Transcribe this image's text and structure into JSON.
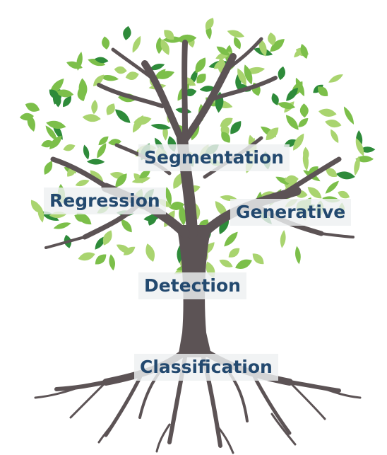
{
  "labels": {
    "segmentation": "Segmentation",
    "regression": "Regression",
    "generative": "Generative",
    "detection": "Detection",
    "classification": "Classification"
  },
  "colors": {
    "trunk": "#5c5355",
    "leaf_light": "#a9d46f",
    "leaf_mid": "#7cbf4a",
    "leaf_dark": "#2e8b3a",
    "label_text": "#23496f"
  }
}
